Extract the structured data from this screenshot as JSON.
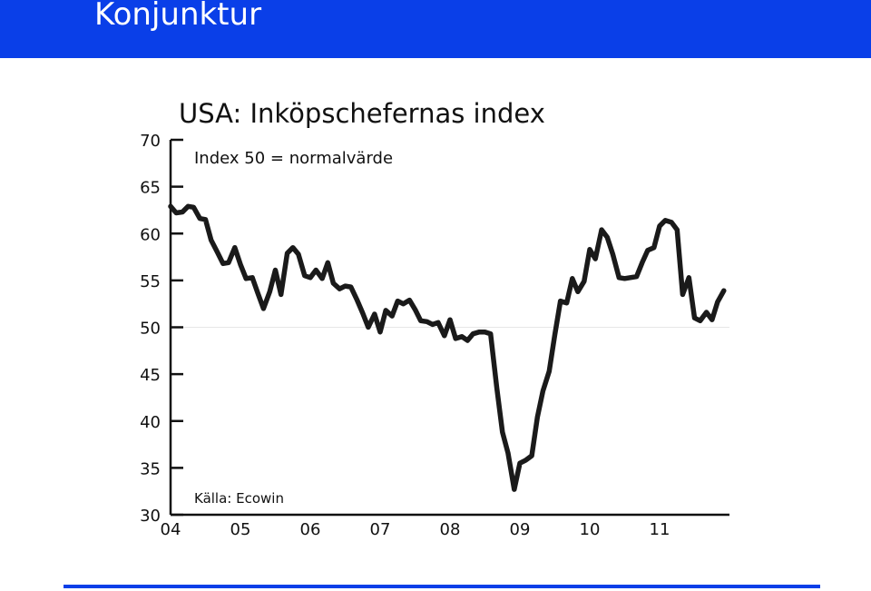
{
  "header": {
    "title": "Konjunktur"
  },
  "colors": {
    "header_bar": "#0a3fe8",
    "line": "#1a1a1a",
    "rule": "#0a3fe8"
  },
  "chart_data": {
    "type": "line",
    "title": "USA: Inköpschefernas index",
    "subtitle": "Index 50 = normalvärde",
    "source": "Källa: Ecowin",
    "xlabel": "",
    "ylabel": "",
    "ylim": [
      30,
      70
    ],
    "yticks": [
      "30",
      "35",
      "40",
      "45",
      "50",
      "55",
      "60",
      "65",
      "70"
    ],
    "xticks": [
      "04",
      "05",
      "06",
      "07",
      "08",
      "09",
      "10",
      "11"
    ],
    "reference_line": 50,
    "grid": false,
    "series": [
      {
        "values": [
          {
            "x": 2004.0,
            "y": 62.9
          },
          {
            "x": 2004.08,
            "y": 62.2
          },
          {
            "x": 2004.17,
            "y": 62.3
          },
          {
            "x": 2004.25,
            "y": 62.9
          },
          {
            "x": 2004.33,
            "y": 62.8
          },
          {
            "x": 2004.42,
            "y": 61.6
          },
          {
            "x": 2004.5,
            "y": 61.5
          },
          {
            "x": 2004.58,
            "y": 59.3
          },
          {
            "x": 2004.67,
            "y": 58.0
          },
          {
            "x": 2004.75,
            "y": 56.8
          },
          {
            "x": 2004.83,
            "y": 56.9
          },
          {
            "x": 2004.92,
            "y": 58.5
          },
          {
            "x": 2005.0,
            "y": 56.7
          },
          {
            "x": 2005.08,
            "y": 55.2
          },
          {
            "x": 2005.17,
            "y": 55.3
          },
          {
            "x": 2005.25,
            "y": 53.6
          },
          {
            "x": 2005.33,
            "y": 52.0
          },
          {
            "x": 2005.42,
            "y": 53.8
          },
          {
            "x": 2005.5,
            "y": 56.1
          },
          {
            "x": 2005.58,
            "y": 53.5
          },
          {
            "x": 2005.67,
            "y": 57.9
          },
          {
            "x": 2005.75,
            "y": 58.5
          },
          {
            "x": 2005.83,
            "y": 57.8
          },
          {
            "x": 2005.92,
            "y": 55.5
          },
          {
            "x": 2006.0,
            "y": 55.3
          },
          {
            "x": 2006.08,
            "y": 56.1
          },
          {
            "x": 2006.17,
            "y": 55.2
          },
          {
            "x": 2006.25,
            "y": 56.9
          },
          {
            "x": 2006.33,
            "y": 54.7
          },
          {
            "x": 2006.42,
            "y": 54.1
          },
          {
            "x": 2006.5,
            "y": 54.4
          },
          {
            "x": 2006.58,
            "y": 54.3
          },
          {
            "x": 2006.67,
            "y": 52.9
          },
          {
            "x": 2006.75,
            "y": 51.5
          },
          {
            "x": 2006.83,
            "y": 50.0
          },
          {
            "x": 2006.92,
            "y": 51.4
          },
          {
            "x": 2007.0,
            "y": 49.5
          },
          {
            "x": 2007.08,
            "y": 51.8
          },
          {
            "x": 2007.17,
            "y": 51.2
          },
          {
            "x": 2007.25,
            "y": 52.8
          },
          {
            "x": 2007.33,
            "y": 52.5
          },
          {
            "x": 2007.42,
            "y": 52.9
          },
          {
            "x": 2007.5,
            "y": 51.9
          },
          {
            "x": 2007.58,
            "y": 50.7
          },
          {
            "x": 2007.67,
            "y": 50.6
          },
          {
            "x": 2007.75,
            "y": 50.3
          },
          {
            "x": 2007.83,
            "y": 50.5
          },
          {
            "x": 2007.92,
            "y": 49.1
          },
          {
            "x": 2008.0,
            "y": 50.8
          },
          {
            "x": 2008.08,
            "y": 48.8
          },
          {
            "x": 2008.17,
            "y": 49.0
          },
          {
            "x": 2008.25,
            "y": 48.6
          },
          {
            "x": 2008.33,
            "y": 49.3
          },
          {
            "x": 2008.42,
            "y": 49.5
          },
          {
            "x": 2008.5,
            "y": 49.5
          },
          {
            "x": 2008.58,
            "y": 49.3
          },
          {
            "x": 2008.67,
            "y": 43.5
          },
          {
            "x": 2008.75,
            "y": 38.8
          },
          {
            "x": 2008.83,
            "y": 36.6
          },
          {
            "x": 2008.92,
            "y": 32.7
          },
          {
            "x": 2009.0,
            "y": 35.5
          },
          {
            "x": 2009.08,
            "y": 35.8
          },
          {
            "x": 2009.17,
            "y": 36.3
          },
          {
            "x": 2009.25,
            "y": 40.4
          },
          {
            "x": 2009.33,
            "y": 43.2
          },
          {
            "x": 2009.42,
            "y": 45.3
          },
          {
            "x": 2009.5,
            "y": 49.2
          },
          {
            "x": 2009.58,
            "y": 52.8
          },
          {
            "x": 2009.67,
            "y": 52.6
          },
          {
            "x": 2009.75,
            "y": 55.2
          },
          {
            "x": 2009.83,
            "y": 53.8
          },
          {
            "x": 2009.92,
            "y": 54.9
          },
          {
            "x": 2010.0,
            "y": 58.3
          },
          {
            "x": 2010.08,
            "y": 57.3
          },
          {
            "x": 2010.17,
            "y": 60.4
          },
          {
            "x": 2010.25,
            "y": 59.6
          },
          {
            "x": 2010.33,
            "y": 57.8
          },
          {
            "x": 2010.42,
            "y": 55.3
          },
          {
            "x": 2010.5,
            "y": 55.2
          },
          {
            "x": 2010.58,
            "y": 55.3
          },
          {
            "x": 2010.67,
            "y": 55.4
          },
          {
            "x": 2010.75,
            "y": 56.9
          },
          {
            "x": 2010.83,
            "y": 58.2
          },
          {
            "x": 2010.92,
            "y": 58.5
          },
          {
            "x": 2011.0,
            "y": 60.8
          },
          {
            "x": 2011.08,
            "y": 61.4
          },
          {
            "x": 2011.17,
            "y": 61.2
          },
          {
            "x": 2011.25,
            "y": 60.4
          },
          {
            "x": 2011.33,
            "y": 53.5
          },
          {
            "x": 2011.42,
            "y": 55.3
          },
          {
            "x": 2011.5,
            "y": 51.0
          },
          {
            "x": 2011.58,
            "y": 50.7
          },
          {
            "x": 2011.67,
            "y": 51.6
          },
          {
            "x": 2011.75,
            "y": 50.8
          },
          {
            "x": 2011.83,
            "y": 52.7
          },
          {
            "x": 2011.92,
            "y": 53.9
          }
        ]
      }
    ]
  }
}
